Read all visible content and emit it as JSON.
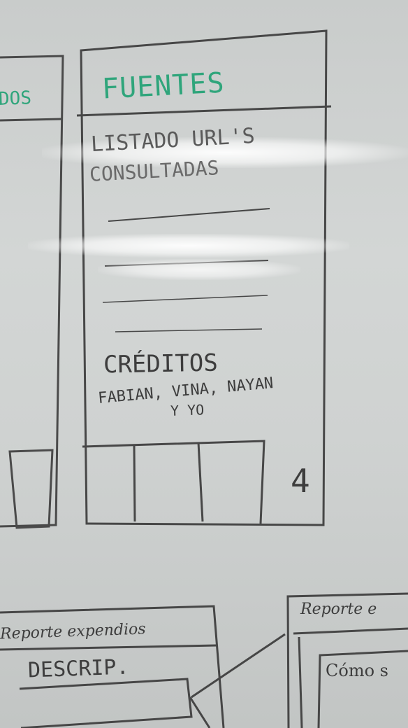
{
  "left_partial_card": {
    "header_fragment": "DOS"
  },
  "main_card": {
    "title": "FUENTES",
    "body_heading_line1": "LISTADO URL'S",
    "body_heading_line2": "CONSULTADAS",
    "credits_heading": "CRÉDITOS",
    "credits_line1": "FABIAN, VINA, NAYAN",
    "credits_line2": "Y YO",
    "page_number": "4"
  },
  "bottom_left_card": {
    "title": "Reporte expendios",
    "label": "DESCRIP."
  },
  "bottom_right_card": {
    "title": "Reporte e",
    "label": "Cómo s"
  },
  "colors": {
    "title_green": "#2fa57b",
    "marker_dark": "#3d3d3d"
  }
}
